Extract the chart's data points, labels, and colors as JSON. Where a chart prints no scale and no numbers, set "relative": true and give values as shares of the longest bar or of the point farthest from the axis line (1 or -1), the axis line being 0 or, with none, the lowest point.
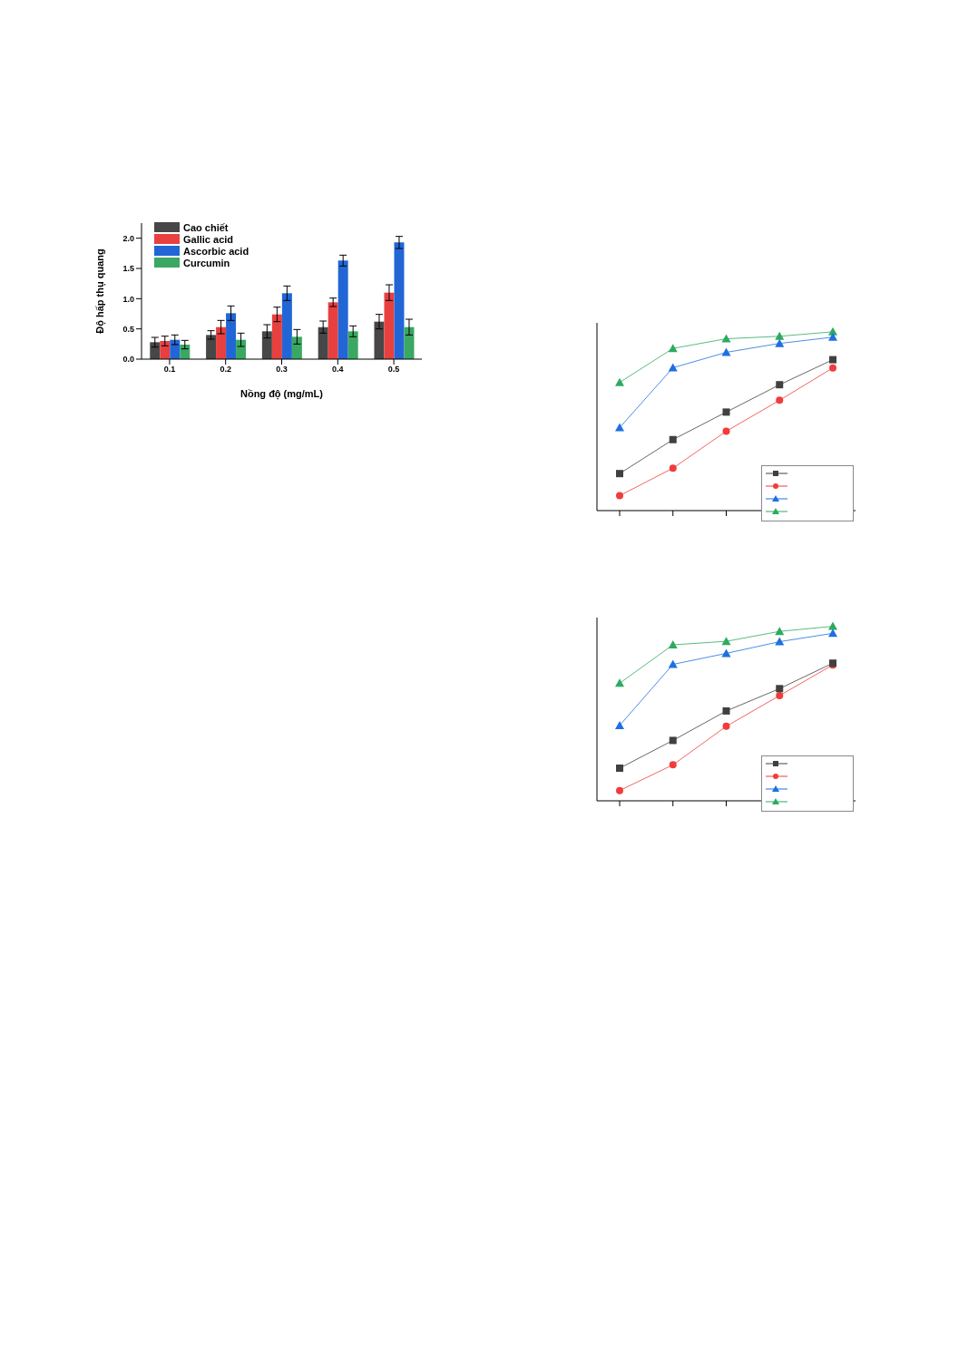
{
  "chart_data": [
    {
      "type": "bar",
      "xlabel": "Nồng độ (mg/mL)",
      "ylabel": "Độ hấp thụ quang",
      "categories": [
        "0.1",
        "0.2",
        "0.3",
        "0.4",
        "0.5"
      ],
      "ylim": [
        0,
        2.25
      ],
      "yticks": [
        {
          "value": 0,
          "label": "0.0"
        },
        {
          "value": 0.5,
          "label": "0.5"
        },
        {
          "value": 1,
          "label": "1.0"
        },
        {
          "value": 1.5,
          "label": "1.5"
        },
        {
          "value": 2,
          "label": "2.0"
        }
      ],
      "grid": false,
      "legend": "top left",
      "series": [
        {
          "name": "Cao chiết",
          "color": "#474747",
          "values": [
            0.28,
            0.4,
            0.46,
            0.53,
            0.62
          ],
          "errors": [
            0.08,
            0.07,
            0.11,
            0.1,
            0.12
          ]
        },
        {
          "name": "Gallic acid",
          "color": "#e8403f",
          "values": [
            0.3,
            0.53,
            0.74,
            0.94,
            1.1
          ],
          "errors": [
            0.08,
            0.11,
            0.12,
            0.07,
            0.13
          ]
        },
        {
          "name": "Ascorbic acid",
          "color": "#2266d6",
          "values": [
            0.32,
            0.76,
            1.09,
            1.63,
            1.93
          ],
          "errors": [
            0.08,
            0.12,
            0.12,
            0.09,
            0.1
          ]
        },
        {
          "name": "Curcumin",
          "color": "#3aa862",
          "values": [
            0.24,
            0.32,
            0.37,
            0.46,
            0.53
          ],
          "errors": [
            0.07,
            0.11,
            0.12,
            0.09,
            0.13
          ]
        }
      ]
    },
    {
      "type": "line",
      "relative": true,
      "categories": [
        null,
        null,
        null,
        null,
        null
      ],
      "grid": false,
      "legend": "bottom right",
      "series": [
        {
          "color": "#404040",
          "marker": "square",
          "values": [
            0.207,
            0.397,
            0.551,
            0.704,
            0.844
          ]
        },
        {
          "color": "#f03c3c",
          "marker": "circle",
          "values": [
            0.084,
            0.237,
            0.444,
            0.617,
            0.798
          ]
        },
        {
          "color": "#1f6fe0",
          "marker": "triangle",
          "values": [
            0.464,
            0.799,
            0.885,
            0.935,
            0.97
          ]
        },
        {
          "color": "#2eaa60",
          "marker": "triangle",
          "values": [
            0.717,
            0.907,
            0.961,
            0.975,
            1
          ]
        }
      ]
    },
    {
      "type": "line",
      "relative": true,
      "categories": [
        null,
        null,
        null,
        null,
        null
      ],
      "grid": false,
      "legend": "bottom right",
      "series": [
        {
          "color": "#404040",
          "marker": "square",
          "values": [
            0.187,
            0.346,
            0.515,
            0.643,
            0.789
          ]
        },
        {
          "color": "#f03c3c",
          "marker": "circle",
          "values": [
            0.059,
            0.206,
            0.427,
            0.603,
            0.779
          ]
        },
        {
          "color": "#1f6fe0",
          "marker": "triangle",
          "values": [
            0.432,
            0.782,
            0.845,
            0.912,
            0.96
          ]
        },
        {
          "color": "#2eaa60",
          "marker": "triangle",
          "values": [
            0.674,
            0.894,
            0.914,
            0.971,
            1
          ]
        }
      ]
    }
  ]
}
